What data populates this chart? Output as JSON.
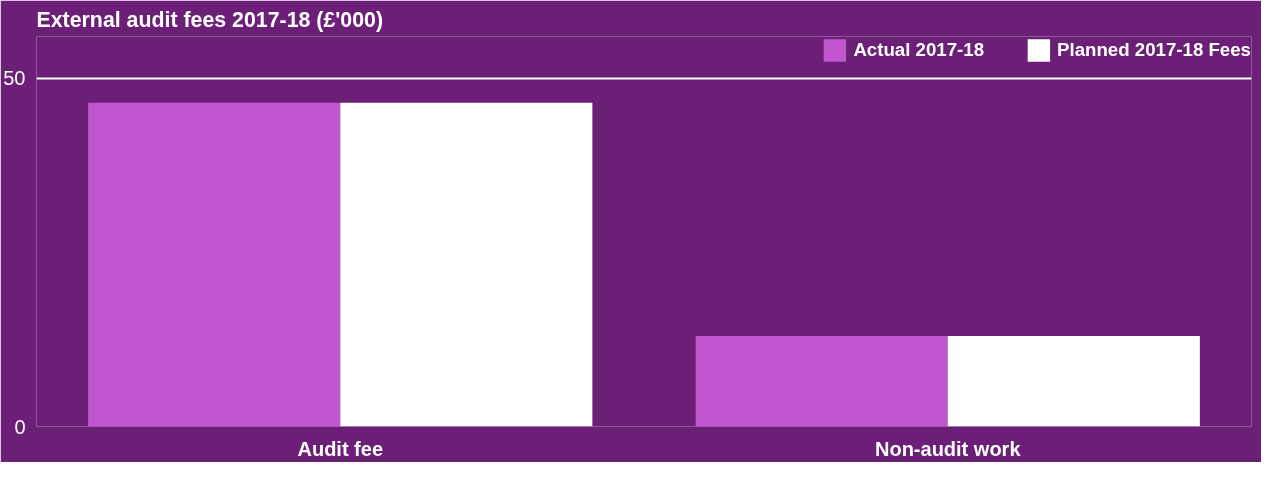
{
  "chart_data": {
    "type": "bar",
    "title": "External audit fees 2017-18 (£'000)",
    "categories": [
      "Audit fee",
      "Non-audit work"
    ],
    "series": [
      {
        "name": "Actual 2017-18",
        "color": "#c157cf",
        "values": [
          46.5,
          13
        ]
      },
      {
        "name": "Planned 2017-18 Fees",
        "color": "#ffffff",
        "values": [
          46.5,
          13
        ]
      }
    ],
    "ylim": [
      0,
      56
    ],
    "yticks": [
      0,
      50
    ],
    "grid": "y",
    "legend": "top right"
  }
}
